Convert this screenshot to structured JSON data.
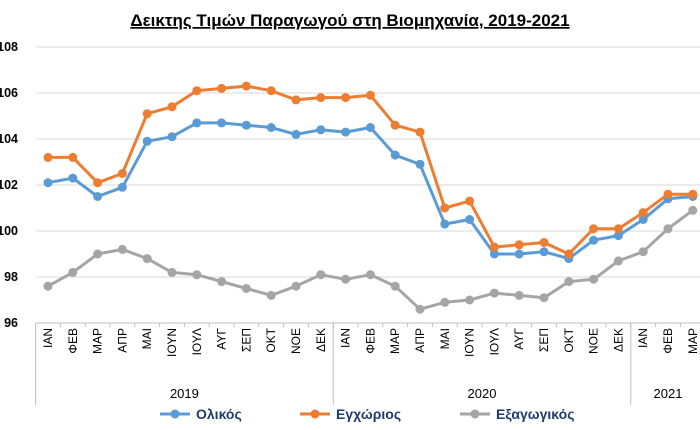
{
  "chart_data": {
    "type": "line",
    "title": "Δεικτης Τιμών Παραγωγού στη Βιομηχανία, 2019-2021",
    "categories": [
      "ΙΑΝ",
      "ΦΕΒ",
      "ΜΑΡ",
      "ΑΠΡ",
      "ΜΑΙ",
      "ΙΟΥΝ",
      "ΙΟΥΛ",
      "ΑΥΓ",
      "ΣΕΠ",
      "ΟΚΤ",
      "ΝΟΕ",
      "ΔΕΚ",
      "ΙΑΝ",
      "ΦΕΒ",
      "ΜΑΡ",
      "ΑΠΡ",
      "ΜΑΙ",
      "ΙΟΥΝ",
      "ΙΟΥΛ",
      "ΑΥΓ",
      "ΣΕΠ",
      "ΟΚΤ",
      "ΝΟΕ",
      "ΔΕΚ",
      "ΙΑΝ",
      "ΦΕΒ",
      "ΜΑΡ"
    ],
    "groups": [
      {
        "label": "2019",
        "start": 0,
        "count": 12
      },
      {
        "label": "2020",
        "start": 12,
        "count": 12
      },
      {
        "label": "2021",
        "start": 24,
        "count": 3
      }
    ],
    "yticks": [
      "96",
      "98",
      "100",
      "102",
      "104",
      "106",
      "108"
    ],
    "ylim": [
      96,
      108
    ],
    "grid": true,
    "legend_position": "bottom",
    "series": [
      {
        "name": "Ολικός",
        "color": "#5b9bd5",
        "values": [
          102.1,
          102.3,
          101.5,
          101.9,
          103.9,
          104.1,
          104.7,
          104.7,
          104.6,
          104.5,
          104.2,
          104.4,
          104.3,
          104.5,
          103.3,
          102.9,
          100.3,
          100.5,
          99.0,
          99.0,
          99.1,
          98.8,
          99.6,
          99.8,
          100.5,
          101.4,
          101.5
        ]
      },
      {
        "name": "Εγχώριος",
        "color": "#ed7d31",
        "values": [
          103.2,
          103.2,
          102.1,
          102.5,
          105.1,
          105.4,
          106.1,
          106.2,
          106.3,
          106.1,
          105.7,
          105.8,
          105.8,
          105.9,
          104.6,
          104.3,
          101.0,
          101.3,
          99.3,
          99.4,
          99.5,
          99.0,
          100.1,
          100.1,
          100.8,
          101.6,
          101.6
        ]
      },
      {
        "name": "Εξαγωγικός",
        "color": "#a5a5a5",
        "values": [
          97.6,
          98.2,
          99.0,
          99.2,
          98.8,
          98.2,
          98.1,
          97.8,
          97.5,
          97.2,
          97.6,
          98.1,
          97.9,
          98.1,
          97.6,
          96.6,
          96.9,
          97.0,
          97.3,
          97.2,
          97.1,
          97.8,
          97.9,
          98.7,
          99.1,
          100.1,
          100.9
        ]
      }
    ]
  }
}
